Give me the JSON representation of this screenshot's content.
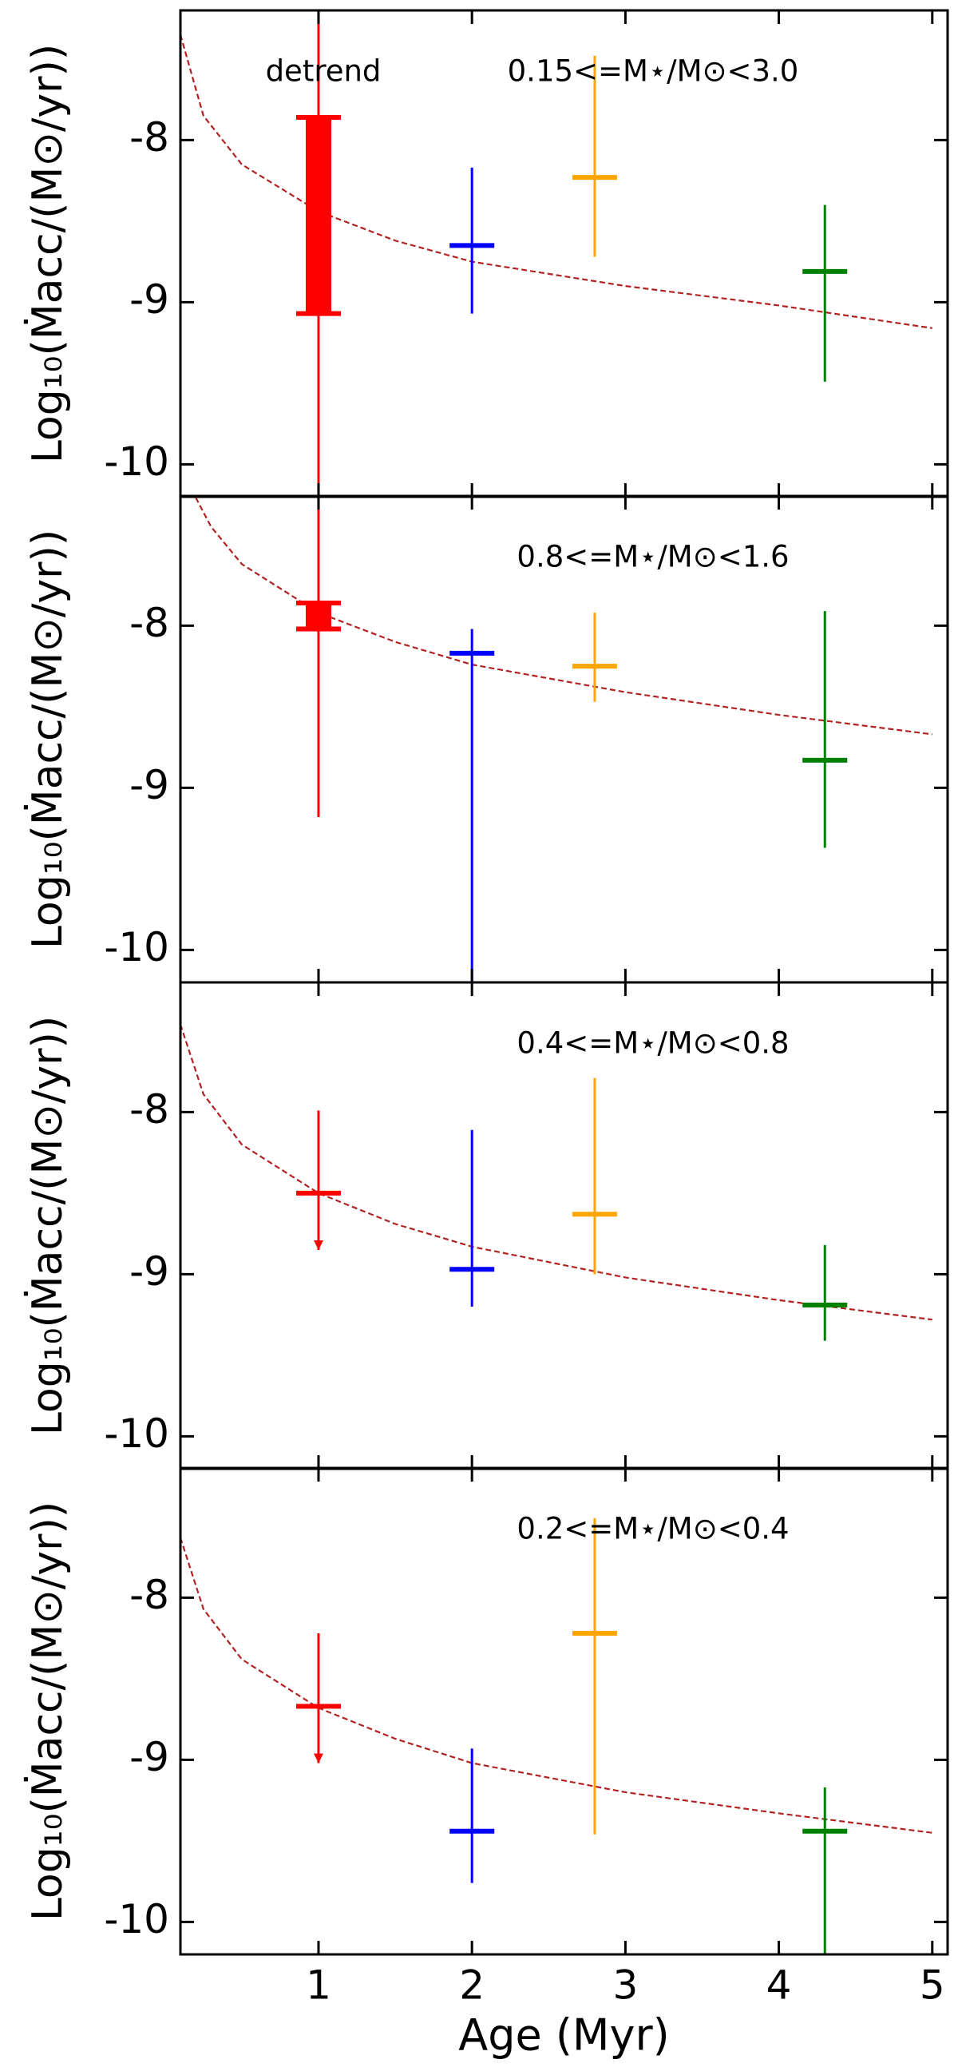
{
  "chart_data": [
    {
      "type": "errorbar",
      "title": "0.15<=M⋆/M⊙<3.0",
      "annotation": "detrend",
      "ylabel": "Log₁₀(Ṁacc/(M⊙/yr))",
      "xlim": [
        0.1,
        5.1
      ],
      "xticks": [
        1,
        2,
        3,
        4,
        5
      ],
      "ylim": [
        -10.2,
        -7.2
      ],
      "yticks": [
        -10,
        -9,
        -8
      ],
      "x": [
        1,
        2,
        2.8,
        4.3
      ],
      "colors": [
        "#ff0000",
        "#0000ff",
        "#ffa500",
        "#008000"
      ],
      "values": [
        null,
        -8.65,
        -8.23,
        -8.81
      ],
      "lower": [
        -10.5,
        -9.07,
        -8.72,
        -9.49
      ],
      "upper": [
        -7.2,
        -8.17,
        -7.48,
        -8.4
      ],
      "box_lower": [
        -9.07,
        null,
        null,
        null
      ],
      "box_upper": [
        -7.86,
        null,
        null,
        null
      ],
      "upper_limit": [
        false,
        false,
        false,
        false
      ],
      "curve_color": "#b22222",
      "curve_x": [
        0.1,
        0.25,
        0.5,
        1,
        1.5,
        2,
        3,
        4,
        5
      ],
      "curve_y": [
        -7.35,
        -7.85,
        -8.15,
        -8.44,
        -8.62,
        -8.75,
        -8.9,
        -9.02,
        -9.16
      ]
    },
    {
      "type": "errorbar",
      "title": "0.8<=M⋆/M⊙<1.6",
      "ylabel": "Log₁₀(Ṁacc/(M⊙/yr))",
      "xlim": [
        0.1,
        5.1
      ],
      "xticks": [
        1,
        2,
        3,
        4,
        5
      ],
      "ylim": [
        -10.2,
        -7.2
      ],
      "yticks": [
        -10,
        -9,
        -8
      ],
      "x": [
        1,
        2,
        2.8,
        4.3
      ],
      "colors": [
        "#ff0000",
        "#0000ff",
        "#ffa500",
        "#008000"
      ],
      "values": [
        null,
        -8.17,
        -8.25,
        -8.83
      ],
      "lower": [
        -9.18,
        -10.2,
        -8.47,
        -9.37
      ],
      "upper": [
        -7.2,
        -8.02,
        -7.92,
        -7.91
      ],
      "box_lower": [
        -8.02,
        null,
        null,
        null
      ],
      "box_upper": [
        -7.86,
        null,
        null,
        null
      ],
      "upper_limit": [
        false,
        false,
        false,
        false
      ],
      "curve_color": "#b22222",
      "curve_x": [
        0.2,
        0.3,
        0.5,
        1,
        1.5,
        2,
        3,
        4,
        5
      ],
      "curve_y": [
        -7.21,
        -7.39,
        -7.62,
        -7.92,
        -8.1,
        -8.24,
        -8.41,
        -8.55,
        -8.67
      ]
    },
    {
      "type": "errorbar",
      "title": "0.4<=M⋆/M⊙<0.8",
      "ylabel": "Log₁₀(Ṁacc/(M⊙/yr))",
      "xlim": [
        0.1,
        5.1
      ],
      "xticks": [
        1,
        2,
        3,
        4,
        5
      ],
      "ylim": [
        -10.2,
        -7.2
      ],
      "yticks": [
        -10,
        -9,
        -8
      ],
      "x": [
        1,
        2,
        2.8,
        4.3
      ],
      "colors": [
        "#ff0000",
        "#0000ff",
        "#ffa500",
        "#008000"
      ],
      "values": [
        -8.5,
        -8.97,
        -8.63,
        -9.19
      ],
      "lower": [
        -8.85,
        -9.2,
        -9.0,
        -9.41
      ],
      "upper": [
        -7.99,
        -8.11,
        -7.79,
        -8.82
      ],
      "box_lower": [
        null,
        null,
        null,
        null
      ],
      "box_upper": [
        null,
        null,
        null,
        null
      ],
      "upper_limit": [
        true,
        false,
        false,
        false
      ],
      "curve_color": "#b22222",
      "curve_x": [
        0.1,
        0.25,
        0.5,
        1,
        1.5,
        2,
        3,
        4,
        5
      ],
      "curve_y": [
        -7.46,
        -7.89,
        -8.2,
        -8.5,
        -8.69,
        -8.83,
        -9.02,
        -9.16,
        -9.28
      ]
    },
    {
      "type": "errorbar",
      "title": "0.2<=M⋆/M⊙<0.4",
      "ylabel": "Log₁₀(Ṁacc/(M⊙/yr))",
      "xlabel": "Age (Myr)",
      "xlim": [
        0.1,
        5.1
      ],
      "xticks": [
        1,
        2,
        3,
        4,
        5
      ],
      "ylim": [
        -10.2,
        -7.2
      ],
      "yticks": [
        -10,
        -9,
        -8
      ],
      "x": [
        1,
        2,
        2.8,
        4.3
      ],
      "colors": [
        "#ff0000",
        "#0000ff",
        "#ffa500",
        "#008000"
      ],
      "values": [
        -8.67,
        -9.44,
        -8.22,
        -9.44
      ],
      "lower": [
        -9.02,
        -9.76,
        -9.46,
        -10.2
      ],
      "upper": [
        -8.22,
        -8.93,
        -7.51,
        -9.17
      ],
      "box_lower": [
        null,
        null,
        null,
        null
      ],
      "box_upper": [
        null,
        null,
        null,
        null
      ],
      "upper_limit": [
        true,
        false,
        false,
        false
      ],
      "curve_color": "#b22222",
      "curve_x": [
        0.1,
        0.25,
        0.5,
        1,
        1.5,
        2,
        3,
        4,
        5
      ],
      "curve_y": [
        -7.63,
        -8.07,
        -8.38,
        -8.68,
        -8.87,
        -9.02,
        -9.2,
        -9.33,
        -9.45
      ]
    }
  ]
}
